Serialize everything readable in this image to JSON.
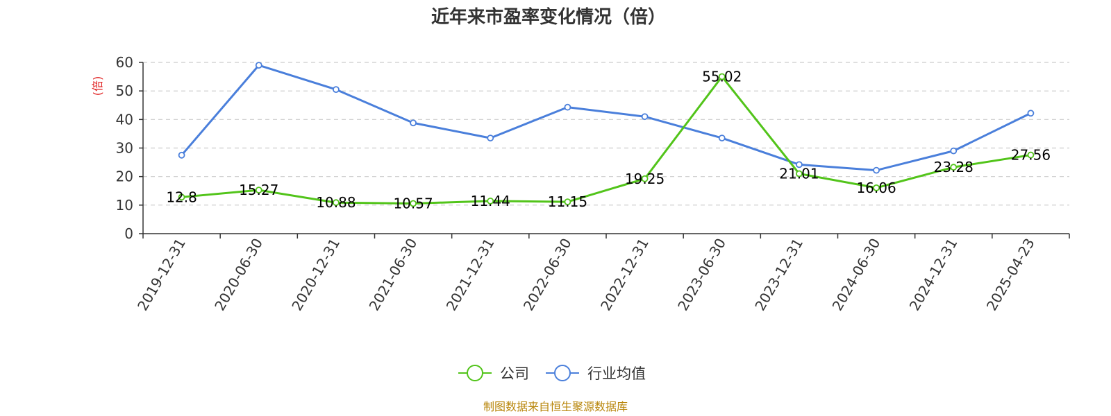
{
  "chart_data": {
    "type": "line",
    "title": "近年来市盈率变化情况（倍）",
    "ylabel": "(倍)",
    "xlabel": "",
    "ylim": [
      0,
      60
    ],
    "yticks": [
      "0",
      "10",
      "20",
      "30",
      "40",
      "50",
      "60"
    ],
    "categories": [
      "2019-12-31",
      "2020-06-30",
      "2020-12-31",
      "2021-06-30",
      "2021-12-31",
      "2022-06-30",
      "2022-12-31",
      "2023-06-30",
      "2023-12-31",
      "2024-06-30",
      "2024-12-31",
      "2025-04-23"
    ],
    "series": [
      {
        "name": "公司",
        "color": "#52c41a",
        "values": [
          12.8,
          15.27,
          10.88,
          10.57,
          11.44,
          11.15,
          19.25,
          55.02,
          21.01,
          16.06,
          23.28,
          27.56
        ],
        "labels": [
          "12.8",
          "15.27",
          "10.88",
          "10.57",
          "11.44",
          "11.15",
          "19.25",
          "55.02",
          "21.01",
          "16.06",
          "23.28",
          "27.56"
        ]
      },
      {
        "name": "行业均值",
        "color": "#4a7fdb",
        "values": [
          27.5,
          59.0,
          50.5,
          38.8,
          33.5,
          44.3,
          41.0,
          33.5,
          24.2,
          22.2,
          29.0,
          42.2
        ]
      }
    ],
    "grid": true,
    "legend_position": "bottom-center",
    "ylabel_color": "#e02020"
  },
  "source_text": "制图数据来自恒生聚源数据库",
  "source_color": "#b8860b"
}
